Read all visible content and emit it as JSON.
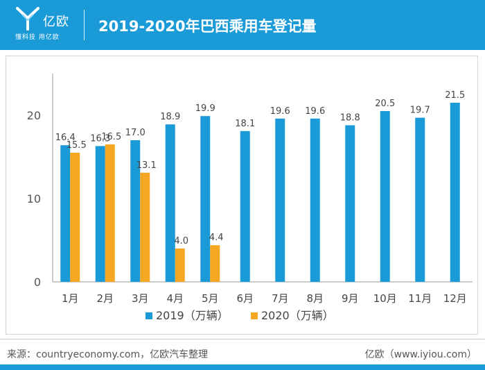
{
  "header": {
    "logo_text": "亿欧",
    "logo_subtitle": "懂科技 用亿欧",
    "title": "2019-2020年巴西乘用车登记量"
  },
  "chart_data": {
    "type": "bar",
    "title": "2019-2020年巴西乘用车登记量",
    "xlabel": "",
    "ylabel": "",
    "categories": [
      "1月",
      "2月",
      "3月",
      "4月",
      "5月",
      "6月",
      "7月",
      "8月",
      "9月",
      "10月",
      "11月",
      "12月"
    ],
    "series": [
      {
        "name": "2019（万辆）",
        "color": "#1a9bd7",
        "values": [
          16.4,
          16.3,
          17.0,
          18.9,
          19.9,
          18.1,
          19.6,
          19.6,
          18.8,
          20.5,
          19.7,
          21.5
        ],
        "labels": [
          "16.4",
          "16.3",
          "17.0",
          "18.9",
          "19.9",
          "18.1",
          "19.6",
          "19.6",
          "18.8",
          "20.5",
          "19.7",
          "21.5"
        ]
      },
      {
        "name": "2020（万辆）",
        "color": "#f5a623",
        "values": [
          15.5,
          16.5,
          13.1,
          4.0,
          4.4,
          null,
          null,
          null,
          null,
          null,
          null,
          null
        ],
        "labels": [
          "15.5",
          "16.5",
          "13.1",
          "4.0",
          "4.4",
          null,
          null,
          null,
          null,
          null,
          null,
          null
        ]
      }
    ],
    "ylim": [
      0,
      25
    ],
    "yticks": [
      0,
      10,
      20
    ],
    "ytick_labels": [
      "0",
      "10",
      "20"
    ],
    "grid": false,
    "legend": "bottom-center"
  },
  "footer": {
    "source": "来源：countryeconomy.com，亿欧汽车整理",
    "brand": "亿欧（www.iyiou.com）"
  }
}
